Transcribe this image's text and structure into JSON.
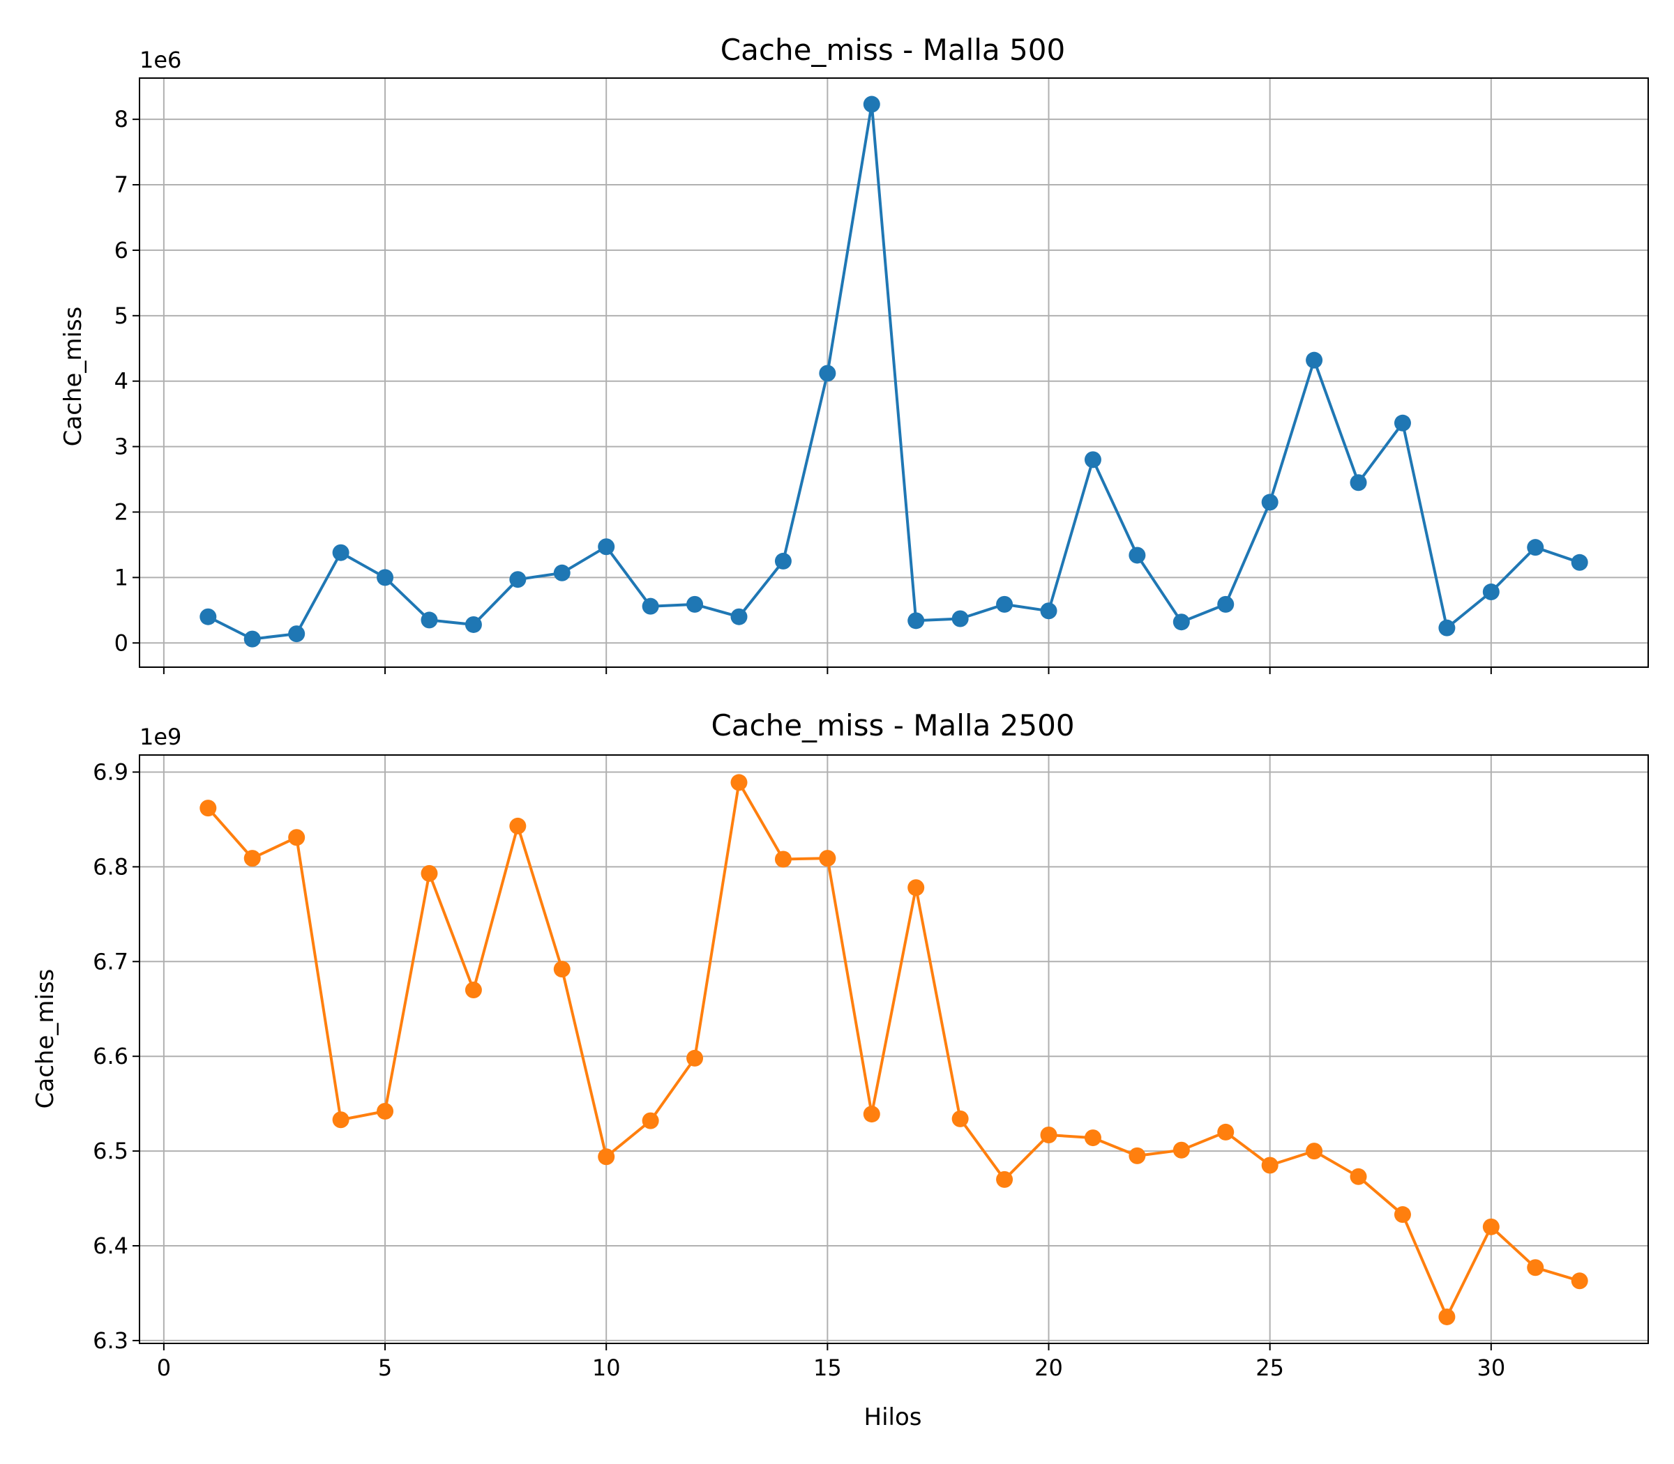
{
  "chart_data": [
    {
      "type": "line",
      "title": "Cache_miss - Malla 500",
      "xlabel": "",
      "ylabel": "Cache_miss",
      "y_offset_label": "1e6",
      "y_scale": 1000000,
      "xlim": [
        -0.55,
        33.55
      ],
      "ylim": [
        -0.37,
        8.63
      ],
      "x_ticks": [
        0,
        5,
        10,
        15,
        20,
        25,
        30
      ],
      "x_tick_labels": [
        "",
        "",
        "",
        "",
        "",
        "",
        ""
      ],
      "y_ticks": [
        0,
        1,
        2,
        3,
        4,
        5,
        6,
        7,
        8
      ],
      "y_tick_labels": [
        "0",
        "1",
        "2",
        "3",
        "4",
        "5",
        "6",
        "7",
        "8"
      ],
      "grid": true,
      "series": [
        {
          "color": "#1f77b4",
          "marker": "circle",
          "x": [
            1,
            2,
            3,
            4,
            5,
            6,
            7,
            8,
            9,
            10,
            11,
            12,
            13,
            14,
            15,
            16,
            17,
            18,
            19,
            20,
            21,
            22,
            23,
            24,
            25,
            26,
            27,
            28,
            29,
            30,
            31,
            32
          ],
          "values": [
            0.4,
            0.06,
            0.14,
            1.38,
            1.0,
            0.35,
            0.28,
            0.97,
            1.07,
            1.47,
            0.56,
            0.59,
            0.4,
            1.25,
            4.12,
            8.23,
            0.34,
            0.37,
            0.59,
            0.49,
            2.8,
            1.34,
            0.32,
            0.59,
            2.15,
            4.32,
            2.45,
            3.36,
            0.23,
            0.78,
            1.46,
            1.23
          ]
        }
      ]
    },
    {
      "type": "line",
      "title": "Cache_miss - Malla 2500",
      "xlabel": "Hilos",
      "ylabel": "Cache_miss",
      "y_offset_label": "1e9",
      "y_scale": 1000000000,
      "xlim": [
        -0.55,
        33.55
      ],
      "ylim": [
        6.297,
        6.918
      ],
      "x_ticks": [
        0,
        5,
        10,
        15,
        20,
        25,
        30
      ],
      "x_tick_labels": [
        "0",
        "5",
        "10",
        "15",
        "20",
        "25",
        "30"
      ],
      "y_ticks": [
        6.3,
        6.4,
        6.5,
        6.6,
        6.7,
        6.8,
        6.9
      ],
      "y_tick_labels": [
        "6.3",
        "6.4",
        "6.5",
        "6.6",
        "6.7",
        "6.8",
        "6.9"
      ],
      "grid": true,
      "series": [
        {
          "color": "#ff7f0e",
          "marker": "circle",
          "x": [
            1,
            2,
            3,
            4,
            5,
            6,
            7,
            8,
            9,
            10,
            11,
            12,
            13,
            14,
            15,
            16,
            17,
            18,
            19,
            20,
            21,
            22,
            23,
            24,
            25,
            26,
            27,
            28,
            29,
            30,
            31,
            32
          ],
          "values": [
            6.862,
            6.809,
            6.831,
            6.533,
            6.542,
            6.793,
            6.67,
            6.843,
            6.692,
            6.494,
            6.532,
            6.598,
            6.889,
            6.808,
            6.809,
            6.539,
            6.778,
            6.534,
            6.47,
            6.517,
            6.514,
            6.495,
            6.501,
            6.52,
            6.485,
            6.5,
            6.473,
            6.433,
            6.325,
            6.42,
            6.377,
            6.363
          ]
        }
      ]
    }
  ]
}
